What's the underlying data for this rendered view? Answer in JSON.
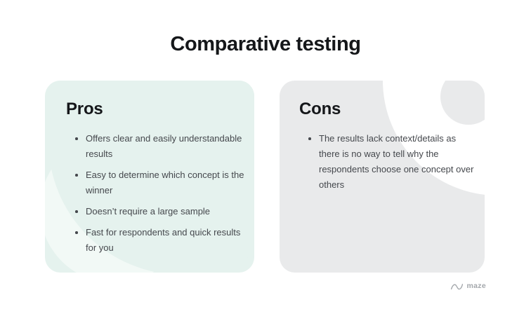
{
  "slide": {
    "title": "Comparative testing",
    "cards": [
      {
        "id": "pros",
        "heading": "Pros",
        "bullets": [
          "Offers clear and easily understandable results",
          "Easy to determine which concept is the winner",
          "Doesn’t require a large sample",
          "Fast for respondents and quick results for you"
        ]
      },
      {
        "id": "cons",
        "heading": "Cons",
        "bullets": [
          "The results lack context/details as there is no way to tell why the respondents choose one concept over others"
        ]
      }
    ],
    "footer": {
      "brand": "maze",
      "icon": "maze-logo-icon"
    },
    "colors": {
      "bg": "#ffffff",
      "pros-bg": "#e5f2ee",
      "pros-accent": "#f2f9f6",
      "cons-bg": "#e9eaeb",
      "cons-accent": "#ffffff",
      "heading": "#15171a",
      "body": "#45484d",
      "footer": "#a3a7ab"
    }
  }
}
